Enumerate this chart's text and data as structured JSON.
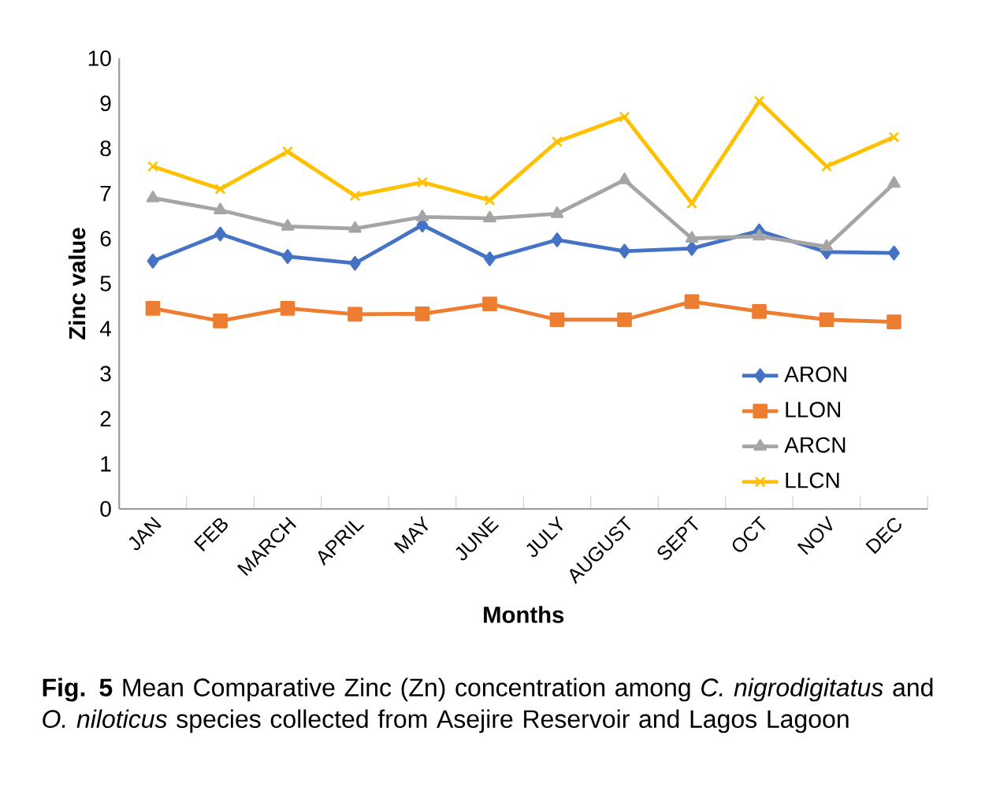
{
  "chart_data": {
    "type": "line",
    "categories": [
      "JAN",
      "FEB",
      "MARCH",
      "APRIL",
      "MAY",
      "JUNE",
      "JULY",
      "AUGUST",
      "SEPT",
      "OCT",
      "NOV",
      "DEC"
    ],
    "xlabel": "Months",
    "ylabel": "Zinc value",
    "ylim": [
      0,
      10
    ],
    "yticks": [
      0,
      1,
      2,
      3,
      4,
      5,
      6,
      7,
      8,
      9,
      10
    ],
    "legend": "bottom right",
    "grid": false,
    "line_style": "solid",
    "series": [
      {
        "name": "ARON",
        "color": "#4472c4",
        "marker": "diamond",
        "values": [
          5.5,
          6.1,
          5.6,
          5.45,
          6.3,
          5.55,
          5.97,
          5.72,
          5.78,
          6.17,
          5.7,
          5.68
        ]
      },
      {
        "name": "LLON",
        "color": "#ed7d31",
        "marker": "square",
        "values": [
          4.45,
          4.17,
          4.45,
          4.32,
          4.33,
          4.55,
          4.2,
          4.2,
          4.6,
          4.38,
          4.2,
          4.15
        ]
      },
      {
        "name": "ARCN",
        "color": "#a5a5a5",
        "marker": "triangle",
        "values": [
          6.9,
          6.63,
          6.27,
          6.22,
          6.48,
          6.45,
          6.55,
          7.3,
          6.0,
          6.05,
          5.82,
          7.22
        ]
      },
      {
        "name": "LLCN",
        "color": "#ffc000",
        "marker": "cross",
        "values": [
          7.6,
          7.1,
          7.93,
          6.95,
          7.25,
          6.85,
          8.15,
          8.7,
          6.78,
          9.05,
          7.6,
          8.25
        ]
      }
    ],
    "annotations": [
      "**Fig. 5**  Mean Comparative Zinc (Zn) concentration among *C. nigrodigitatus* and *O. niloticus* species collected from Asejire Reservoir and Lagos Lagoon"
    ]
  }
}
